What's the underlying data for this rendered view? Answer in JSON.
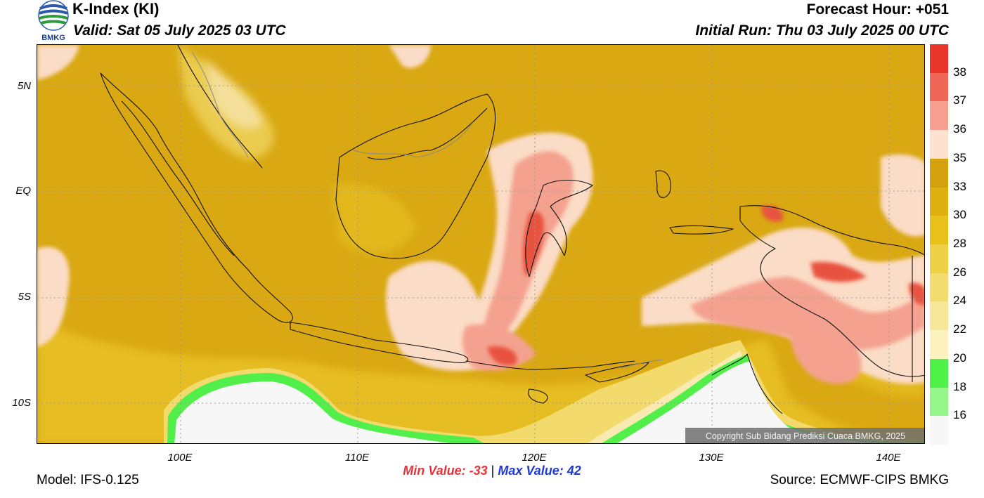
{
  "header": {
    "title": "K-Index (KI)",
    "valid": "Valid: Sat 05 July 2025 03 UTC",
    "forecast_hour": "Forecast Hour: +051",
    "initial_run": "Initial Run: Thu 03 July 2025 00 UTC"
  },
  "logo": {
    "text": "BMKG"
  },
  "axes": {
    "lat_labels": [
      "5N",
      "EQ",
      "5S",
      "10S"
    ],
    "lon_labels": [
      "100E",
      "110E",
      "120E",
      "130E",
      "140E"
    ]
  },
  "stats": {
    "min_label": "Min Value: -33",
    "separator": "|",
    "max_label": "Max Value:  42"
  },
  "footer": {
    "model": "Model: IFS-0.125",
    "source": "Source: ECMWF-CIPS BMKG",
    "copyright": "Copyright Sub Bidang Prediksi Cuaca BMKG, 2025"
  },
  "colorbar": {
    "labels": [
      "38",
      "37",
      "36",
      "35",
      "33",
      "30",
      "28",
      "26",
      "24",
      "22",
      "20",
      "18",
      "16"
    ],
    "colors": [
      "#e8342a",
      "#f06656",
      "#f7a08f",
      "#fde2cf",
      "#d4a00e",
      "#deb010",
      "#e8c21a",
      "#eed046",
      "#f2dc70",
      "#f6e79a",
      "#fbf2be",
      "#4ff048",
      "#93f58a",
      "#f7f7f7"
    ]
  },
  "map": {
    "palette": {
      "ocean_base": "#d8a812",
      "land_base": "#d2a20f",
      "light_field": "#eed046",
      "pale_field": "#f6e79a",
      "peach": "#fbdcc6",
      "salmon": "#f4a28f",
      "red": "#e8533f",
      "green": "#52ef4a",
      "white_area": "#f7f7f7",
      "coast": "#111111"
    }
  }
}
